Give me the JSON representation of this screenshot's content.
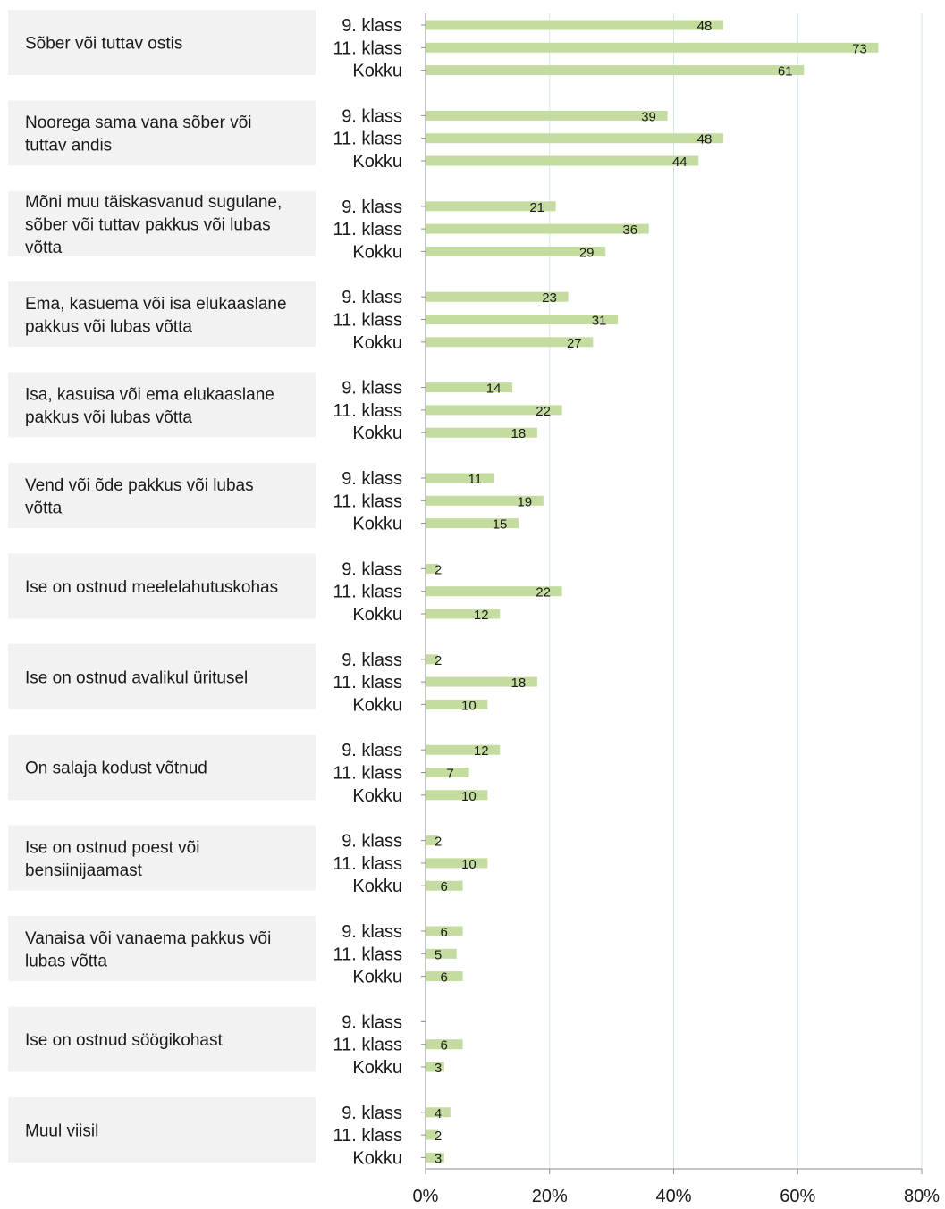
{
  "chart_data": {
    "type": "bar",
    "orientation": "horizontal",
    "bar_color": "#c5dca0",
    "xlim": [
      0,
      80
    ],
    "x_ticks": [
      "0%",
      "20%",
      "40%",
      "60%",
      "80%"
    ],
    "group_labels": [
      "9. klass",
      "11. klass",
      "Kokku"
    ],
    "categories": [
      {
        "label": "Sõber või tuttav ostis",
        "values": [
          48,
          73,
          61
        ]
      },
      {
        "label": "Noorega sama vana sõber või tuttav andis",
        "values": [
          39,
          48,
          44
        ]
      },
      {
        "label": "Mõni muu täiskasvanud sugulane, sõber või tuttav pakkus või lubas võtta",
        "values": [
          21,
          36,
          29
        ]
      },
      {
        "label": "Ema, kasuema või isa elukaaslane pakkus või lubas võtta",
        "values": [
          23,
          31,
          27
        ]
      },
      {
        "label": "Isa, kasuisa või ema elukaaslane pakkus või lubas võtta",
        "values": [
          14,
          22,
          18
        ]
      },
      {
        "label": "Vend või õde pakkus või lubas võtta",
        "values": [
          11,
          19,
          15
        ]
      },
      {
        "label": "Ise on ostnud meelelahutuskohas",
        "values": [
          2,
          22,
          12
        ]
      },
      {
        "label": "Ise on ostnud avalikul üritusel",
        "values": [
          2,
          18,
          10
        ]
      },
      {
        "label": "On salaja kodust võtnud",
        "values": [
          12,
          7,
          10
        ]
      },
      {
        "label": "Ise on ostnud poest või bensiinijaamast",
        "values": [
          2,
          10,
          6
        ]
      },
      {
        "label": "Vanaisa või vanaema pakkus või lubas võtta",
        "values": [
          6,
          5,
          6
        ]
      },
      {
        "label": "Ise on ostnud söögikohast",
        "values": [
          null,
          6,
          3
        ]
      },
      {
        "label": "Muul viisil",
        "values": [
          4,
          2,
          3
        ]
      }
    ]
  }
}
